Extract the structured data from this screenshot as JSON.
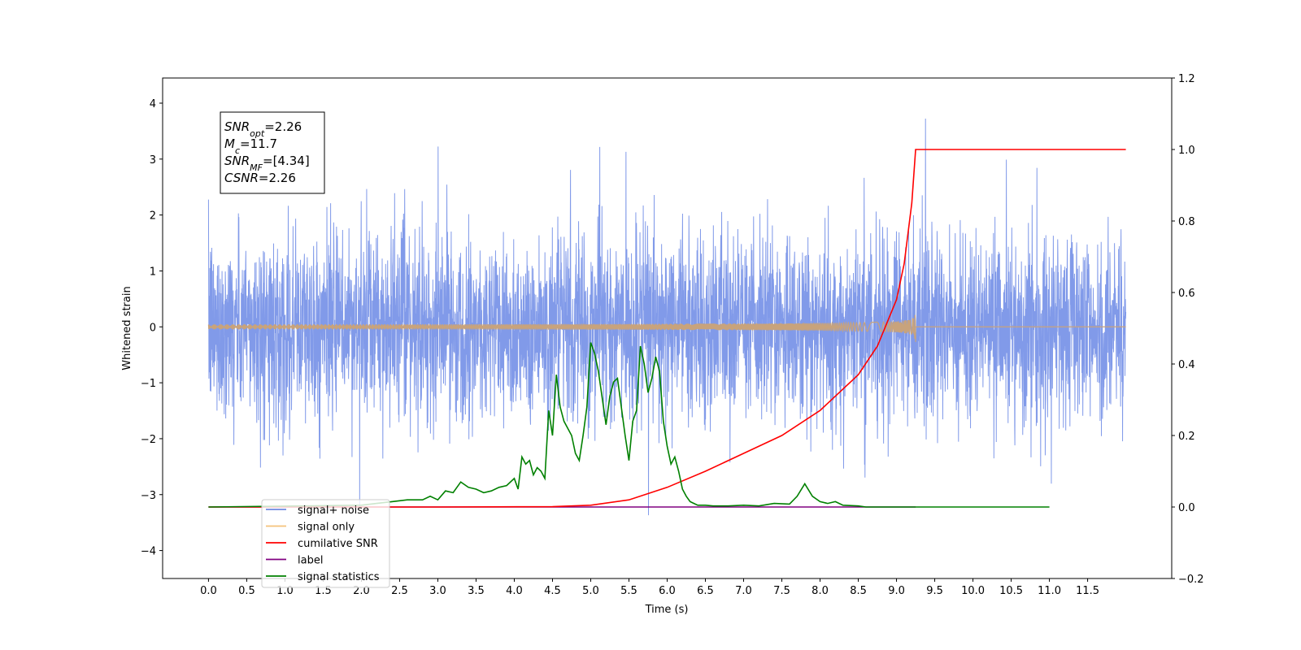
{
  "chart_data": {
    "type": "line",
    "xlabel": "Time (s)",
    "ylabel": "Whitened strain",
    "xlim": [
      -0.6,
      12.6
    ],
    "ylim": [
      -4.5,
      4.45
    ],
    "y2lim": [
      -0.2,
      1.2
    ],
    "x_ticks": [
      "0.0",
      "0.5",
      "1.0",
      "1.5",
      "2.0",
      "2.5",
      "3.0",
      "3.5",
      "4.0",
      "4.5",
      "5.0",
      "5.5",
      "6.0",
      "6.5",
      "7.0",
      "7.5",
      "8.0",
      "8.5",
      "9.0",
      "9.5",
      "10.0",
      "10.5",
      "11.0",
      "11.5"
    ],
    "y_ticks": [
      "−4",
      "−3",
      "−2",
      "−1",
      "0",
      "1",
      "2",
      "3",
      "4"
    ],
    "y2_ticks": [
      "−0.2",
      "0.0",
      "0.2",
      "0.4",
      "0.6",
      "0.8",
      "1.0",
      "1.2"
    ],
    "legend_position": "lower-left",
    "series": [
      {
        "name": "signal+ noise",
        "color": "#7a95e8",
        "axis": "left",
        "description_values": "dense whitened noise spanning roughly −2 to +2 with spikes to about ±4 from t=0.0 to 12.0 s",
        "amplitude_typical": 2.0,
        "amplitude_peak": 4.05
      },
      {
        "name": "signal only",
        "color": "#f5c27a",
        "axis": "left",
        "description_values": "chirp near zero growing to about ±0.3 and ending at t=9.25 s",
        "end_time": 9.25,
        "peak_amplitude": 0.3
      },
      {
        "name": "cumilative SNR",
        "color": "#ff0000",
        "axis": "right",
        "x": [
          0.0,
          3.0,
          4.5,
          5.0,
          5.5,
          6.0,
          6.5,
          7.0,
          7.5,
          8.0,
          8.5,
          8.75,
          9.0,
          9.1,
          9.2,
          9.25,
          12.0
        ],
        "values": [
          0.0,
          0.0,
          0.001,
          0.005,
          0.02,
          0.055,
          0.1,
          0.15,
          0.2,
          0.27,
          0.37,
          0.45,
          0.58,
          0.68,
          0.85,
          1.0,
          1.0
        ]
      },
      {
        "name": "label",
        "color": "#800080",
        "axis": "right",
        "x": [
          0.0,
          9.25
        ],
        "values": [
          0.0,
          0.0
        ]
      },
      {
        "name": "signal statistics",
        "color": "#008000",
        "axis": "right",
        "x": [
          0.0,
          2.0,
          2.2,
          2.4,
          2.6,
          2.8,
          2.9,
          3.0,
          3.1,
          3.2,
          3.3,
          3.4,
          3.5,
          3.6,
          3.7,
          3.8,
          3.9,
          4.0,
          4.05,
          4.1,
          4.15,
          4.2,
          4.25,
          4.3,
          4.35,
          4.4,
          4.45,
          4.5,
          4.55,
          4.6,
          4.65,
          4.7,
          4.75,
          4.8,
          4.85,
          4.9,
          4.95,
          5.0,
          5.05,
          5.1,
          5.2,
          5.25,
          5.3,
          5.35,
          5.4,
          5.45,
          5.5,
          5.55,
          5.6,
          5.65,
          5.7,
          5.75,
          5.8,
          5.85,
          5.9,
          5.95,
          6.0,
          6.05,
          6.1,
          6.15,
          6.2,
          6.25,
          6.3,
          6.35,
          6.4,
          6.5,
          6.6,
          6.8,
          7.0,
          7.2,
          7.4,
          7.6,
          7.7,
          7.8,
          7.9,
          8.0,
          8.1,
          8.2,
          8.3,
          8.5,
          8.6,
          11.0
        ],
        "values": [
          0.0,
          0.005,
          0.01,
          0.015,
          0.02,
          0.02,
          0.03,
          0.02,
          0.045,
          0.04,
          0.07,
          0.055,
          0.05,
          0.04,
          0.045,
          0.055,
          0.06,
          0.08,
          0.05,
          0.14,
          0.12,
          0.13,
          0.09,
          0.11,
          0.1,
          0.08,
          0.27,
          0.2,
          0.37,
          0.28,
          0.24,
          0.22,
          0.2,
          0.15,
          0.13,
          0.2,
          0.28,
          0.46,
          0.43,
          0.38,
          0.23,
          0.31,
          0.35,
          0.36,
          0.28,
          0.2,
          0.13,
          0.24,
          0.27,
          0.45,
          0.4,
          0.32,
          0.36,
          0.42,
          0.38,
          0.24,
          0.17,
          0.12,
          0.14,
          0.1,
          0.05,
          0.03,
          0.015,
          0.01,
          0.005,
          0.005,
          0.003,
          0.003,
          0.005,
          0.003,
          0.01,
          0.008,
          0.03,
          0.065,
          0.03,
          0.015,
          0.01,
          0.015,
          0.005,
          0.003,
          0.0,
          0.0
        ]
      }
    ],
    "annotation": {
      "lines": [
        {
          "sym": "SNR",
          "sub": "opt",
          "rest": "=2.26"
        },
        {
          "sym": "M",
          "sub": "c",
          "rest": "=11.7"
        },
        {
          "sym": "SNR",
          "sub": "MF",
          "rest": "=[4.34]"
        },
        {
          "sym": "CSNR",
          "sub": "",
          "rest": "=2.26"
        }
      ]
    },
    "legend": [
      {
        "label": "signal+ noise",
        "color": "#6f88e0"
      },
      {
        "label": "signal only",
        "color": "#f5c27a"
      },
      {
        "label": "cumilative SNR",
        "color": "#ff0000"
      },
      {
        "label": "label",
        "color": "#800080"
      },
      {
        "label": "signal statistics",
        "color": "#008000"
      }
    ]
  }
}
